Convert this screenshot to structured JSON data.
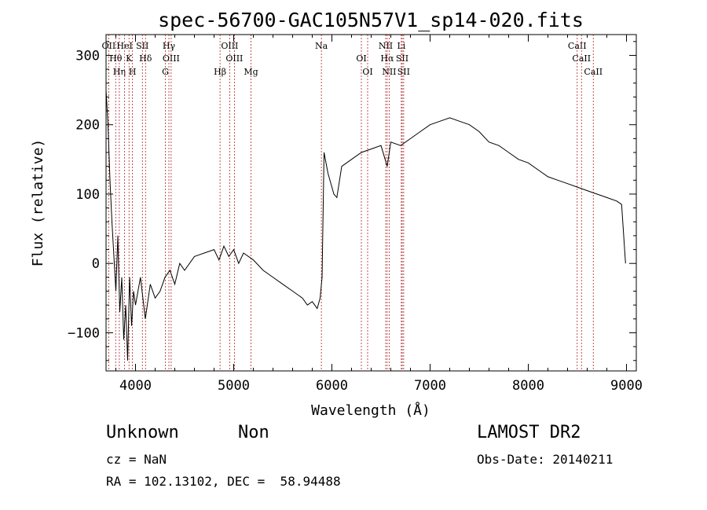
{
  "chart_data": {
    "type": "line",
    "title": "spec-56700-GAC105N57V1_sp14-020.fits",
    "xlabel": "Wavelength (Å)",
    "ylabel": "Flux (relative)",
    "xlim": [
      3700,
      9100
    ],
    "ylim": [
      -155,
      330
    ],
    "xticks": [
      4000,
      5000,
      6000,
      7000,
      8000,
      9000
    ],
    "yticks": [
      -100,
      0,
      100,
      200,
      300
    ],
    "tick_labels_x": [
      "4000",
      "5000",
      "6000",
      "7000",
      "8000",
      "9000"
    ],
    "tick_labels_y": [
      "−100",
      "0",
      "100",
      "200",
      "300"
    ],
    "grid": false,
    "line_color": "#000000",
    "marker_color": "#b22222",
    "series": [
      {
        "x": [
          3700,
          3720,
          3740,
          3760,
          3780,
          3800,
          3820,
          3840,
          3860,
          3880,
          3900,
          3920,
          3940,
          3960,
          3980,
          4000,
          4050,
          4100,
          4150,
          4200,
          4250,
          4300,
          4350,
          4400,
          4450,
          4500,
          4600,
          4700,
          4800,
          4850,
          4900,
          4950,
          5000,
          5050,
          5100,
          5200,
          5300,
          5400,
          5500,
          5600,
          5700,
          5750,
          5800,
          5850,
          5880,
          5900,
          5920,
          5960,
          6000,
          6020,
          6050,
          6100,
          6200,
          6300,
          6400,
          6500,
          6563,
          6600,
          6700,
          6800,
          6900,
          7000,
          7100,
          7200,
          7300,
          7400,
          7500,
          7600,
          7700,
          7800,
          7900,
          8000,
          8100,
          8200,
          8300,
          8400,
          8500,
          8600,
          8700,
          8800,
          8900,
          8950,
          8990
        ],
        "y": [
          250,
          200,
          120,
          60,
          10,
          -40,
          40,
          -70,
          -20,
          -110,
          -60,
          -140,
          -20,
          -90,
          -40,
          -60,
          -20,
          -80,
          -30,
          -50,
          -40,
          -20,
          -10,
          -30,
          0,
          -10,
          10,
          15,
          20,
          5,
          25,
          10,
          20,
          0,
          15,
          5,
          -10,
          -20,
          -30,
          -40,
          -50,
          -60,
          -55,
          -65,
          -50,
          -20,
          160,
          130,
          110,
          100,
          95,
          140,
          150,
          160,
          165,
          170,
          140,
          175,
          170,
          180,
          190,
          200,
          205,
          210,
          205,
          200,
          190,
          175,
          170,
          160,
          150,
          145,
          135,
          125,
          120,
          115,
          110,
          105,
          100,
          95,
          90,
          85,
          0
        ]
      }
    ],
    "lines": [
      {
        "x": 3727,
        "labels": [
          "OII"
        ]
      },
      {
        "x": 3798,
        "labels": [
          "Hθ"
        ]
      },
      {
        "x": 3835,
        "labels": [
          "Hη"
        ]
      },
      {
        "x": 3889,
        "labels": [
          "HeI"
        ]
      },
      {
        "x": 3934,
        "labels": [
          "K"
        ]
      },
      {
        "x": 3969,
        "labels": [
          "H"
        ]
      },
      {
        "x": 4070,
        "labels": [
          "SII"
        ]
      },
      {
        "x": 4102,
        "labels": [
          "Hδ"
        ]
      },
      {
        "x": 4304,
        "labels": [
          "G"
        ]
      },
      {
        "x": 4340,
        "labels": [
          "Hγ"
        ]
      },
      {
        "x": 4363,
        "labels": [
          "OIII"
        ]
      },
      {
        "x": 4861,
        "labels": [
          "Hβ"
        ]
      },
      {
        "x": 4959,
        "labels": [
          "OIII"
        ]
      },
      {
        "x": 5007,
        "labels": [
          "OIII"
        ]
      },
      {
        "x": 5176,
        "labels": [
          "Mg"
        ]
      },
      {
        "x": 5893,
        "labels": [
          "Na"
        ]
      },
      {
        "x": 6300,
        "labels": [
          "OI"
        ]
      },
      {
        "x": 6364,
        "labels": [
          "OI"
        ]
      },
      {
        "x": 6548,
        "labels": [
          "NII"
        ]
      },
      {
        "x": 6563,
        "labels": [
          "Hα"
        ]
      },
      {
        "x": 6583,
        "labels": [
          "NII"
        ]
      },
      {
        "x": 6707,
        "labels": [
          "Li"
        ]
      },
      {
        "x": 6716,
        "labels": [
          "SII"
        ]
      },
      {
        "x": 6731,
        "labels": [
          "SII"
        ]
      },
      {
        "x": 8498,
        "labels": [
          "CaII"
        ]
      },
      {
        "x": 8542,
        "labels": [
          "CaII"
        ]
      },
      {
        "x": 8662,
        "labels": [
          "CaII"
        ]
      }
    ]
  },
  "info": {
    "class": "Unknown",
    "subclass": "Non",
    "survey": "LAMOST DR2",
    "cz": "cz = NaN",
    "obsdate": "Obs-Date: 20140211",
    "radec": "RA = 102.13102, DEC =  58.94488"
  }
}
